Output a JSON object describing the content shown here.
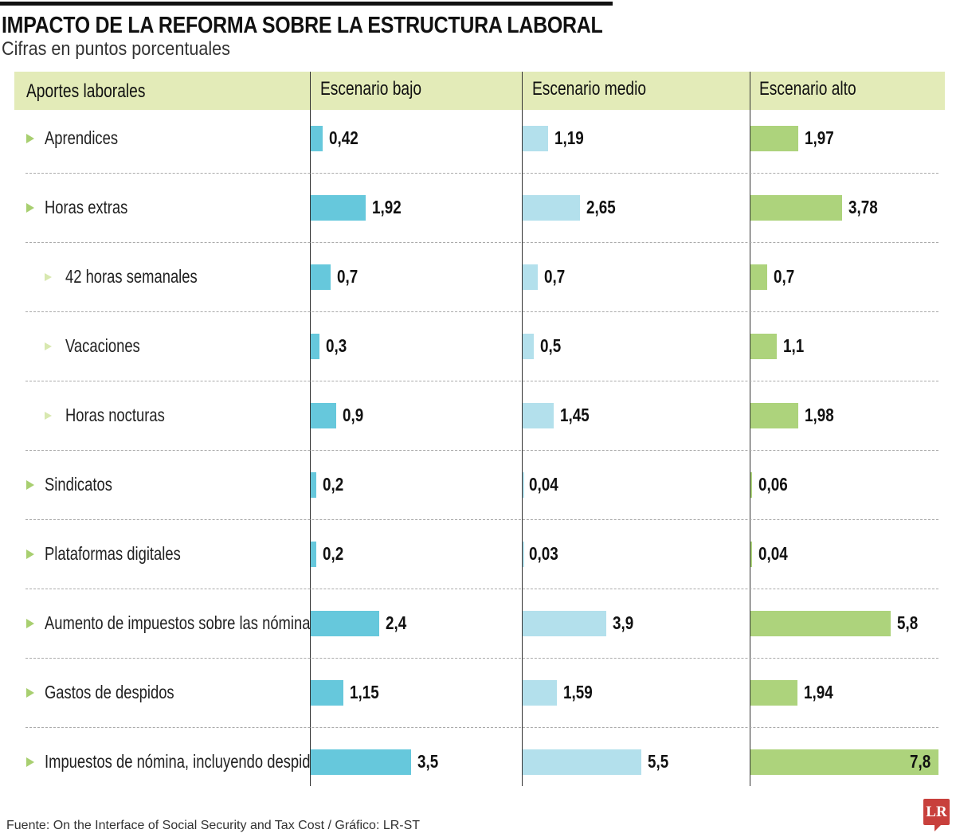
{
  "title": "IMPACTO DE LA REFORMA SOBRE LA ESTRUCTURA LABORAL",
  "subtitle": "Cifras en puntos porcentuales",
  "source": "Fuente: On the Interface of Social Security and Tax Cost / Gráfico: LR-ST",
  "logo": "LR",
  "colors": {
    "bajo": "#66c8dc",
    "medio": "#b3e0ec",
    "alto": "#add37c",
    "header": "#e3ebb8"
  },
  "chart_data": {
    "type": "bar",
    "title": "IMPACTO DE LA REFORMA SOBRE LA ESTRUCTURA LABORAL",
    "subtitle": "Cifras en puntos porcentuales",
    "row_header": "Aportes laborales",
    "categories": [
      "Aprendices",
      "Horas extras",
      "42 horas semanales",
      "Vacaciones",
      "Horas nocturas",
      "Sindicatos",
      "Plataformas digitales",
      "Aumento de impuestos sobre las nóminas",
      "Gastos de despidos",
      "Impuestos de nómina, incluyendo despidos"
    ],
    "subcategory": [
      false,
      false,
      true,
      true,
      true,
      false,
      false,
      false,
      false,
      false
    ],
    "series": [
      {
        "name": "Escenario bajo",
        "values": [
          0.42,
          1.92,
          0.7,
          0.3,
          0.9,
          0.2,
          0.2,
          2.4,
          1.15,
          3.5
        ],
        "labels": [
          "0,42",
          "1,92",
          "0,7",
          "0,3",
          "0,9",
          "0,2",
          "0,2",
          "2,4",
          "1,15",
          "3,5"
        ]
      },
      {
        "name": "Escenario medio",
        "values": [
          1.19,
          2.65,
          0.7,
          0.5,
          1.45,
          0.04,
          0.03,
          3.9,
          1.59,
          5.5
        ],
        "labels": [
          "1,19",
          "2,65",
          "0,7",
          "0,5",
          "1,45",
          "0,04",
          "0,03",
          "3,9",
          "1,59",
          "5,5"
        ]
      },
      {
        "name": "Escenario alto",
        "values": [
          1.97,
          3.78,
          0.7,
          1.1,
          1.98,
          0.06,
          0.04,
          5.8,
          1.94,
          7.8
        ],
        "labels": [
          "1,97",
          "3,78",
          "0,7",
          "1,1",
          "1,98",
          "0,06",
          "0,04",
          "5,8",
          "1,94",
          "7,8"
        ]
      }
    ]
  }
}
